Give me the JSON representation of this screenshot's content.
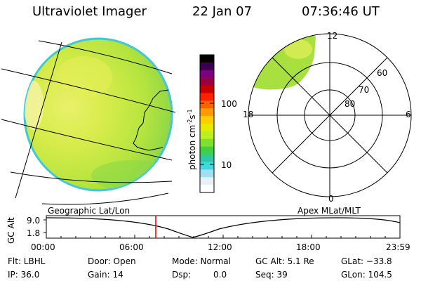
{
  "header": {
    "instrument": "Ultraviolet Imager",
    "date": "22 Jan 07",
    "time": "07:36:46 UT"
  },
  "colorbar": {
    "label": "photon cm",
    "label_sup1": "-2",
    "label_mid": "s",
    "label_sup2": "-1",
    "ticks": [
      "100",
      "10"
    ],
    "colors": [
      "#000000",
      "#3a0050",
      "#7a0080",
      "#9a0040",
      "#c80000",
      "#ff2000",
      "#ff6000",
      "#ff9a00",
      "#ffcc00",
      "#e8e800",
      "#b8f020",
      "#80e030",
      "#40d040",
      "#30c8a0",
      "#40d8e0",
      "#a0e0f0",
      "#e8f0f8",
      "#ffffff"
    ]
  },
  "polar_plot": {
    "hour_labels": [
      "12",
      "18",
      "6",
      "0"
    ],
    "lat_labels": [
      "60",
      "70",
      "80"
    ]
  },
  "timeline": {
    "left_caption": "Geographic Lat/Lon",
    "right_caption": "Apex MLat/MLT",
    "ylabel": "GC Alt",
    "y_ticks": [
      "9.0",
      "1.8"
    ],
    "x_ticks": [
      "00:00",
      "06:00",
      "12:00",
      "18:00",
      "23:59"
    ],
    "current_time": "07:36"
  },
  "info": {
    "flt": "Flt: LBHL",
    "door": "Door: Open",
    "mode": "Mode: Normal",
    "gc_alt": "GC Alt: 5.1 Re",
    "glat": "GLat: −33.8",
    "ip": "IP: 36.0",
    "gain": "Gain: 14",
    "dsp": "Dsp:",
    "dsp_val": "0.0",
    "seq": "Seq: 39",
    "glon": "GLon: 104.5"
  }
}
